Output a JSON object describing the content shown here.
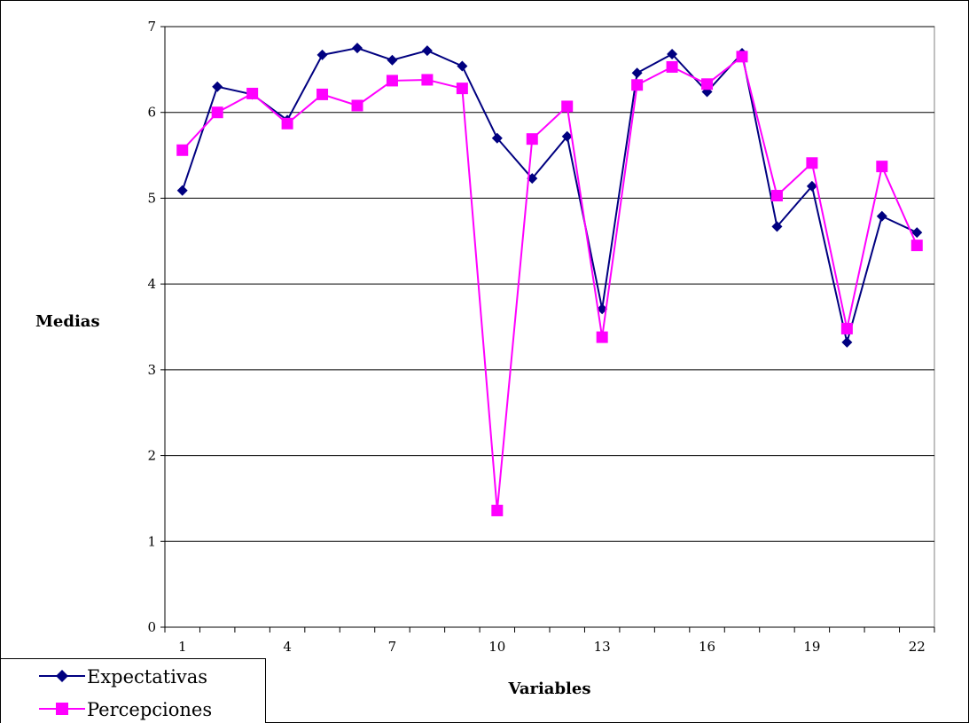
{
  "chart_data": {
    "type": "line",
    "title": "",
    "xlabel": "Variables",
    "ylabel": "Medias",
    "x": [
      1,
      2,
      3,
      4,
      5,
      6,
      7,
      8,
      9,
      10,
      11,
      12,
      13,
      14,
      15,
      16,
      17,
      18,
      19,
      20,
      21,
      22
    ],
    "x_tick_labels": [
      "1",
      "4",
      "7",
      "10",
      "13",
      "16",
      "19",
      "22"
    ],
    "ylim": [
      0,
      7
    ],
    "y_ticks": [
      0,
      1,
      2,
      3,
      4,
      5,
      6,
      7
    ],
    "grid": "horizontal",
    "legend_position": "bottom-left",
    "series": [
      {
        "name": "Expectativas",
        "color": "#000080",
        "marker": "diamond",
        "values": [
          5.09,
          6.3,
          6.21,
          5.91,
          6.67,
          6.75,
          6.61,
          6.72,
          6.54,
          5.7,
          5.23,
          5.72,
          3.71,
          6.46,
          6.68,
          6.24,
          6.69,
          4.67,
          5.14,
          3.32,
          4.79,
          4.6
        ]
      },
      {
        "name": "Percepciones",
        "color": "#ff00ff",
        "marker": "square",
        "values": [
          5.56,
          6.0,
          6.22,
          5.87,
          6.21,
          6.08,
          6.37,
          6.38,
          6.28,
          1.36,
          5.69,
          6.07,
          3.38,
          6.32,
          6.53,
          6.33,
          6.65,
          5.03,
          5.41,
          3.48,
          5.37,
          4.45
        ]
      }
    ]
  }
}
